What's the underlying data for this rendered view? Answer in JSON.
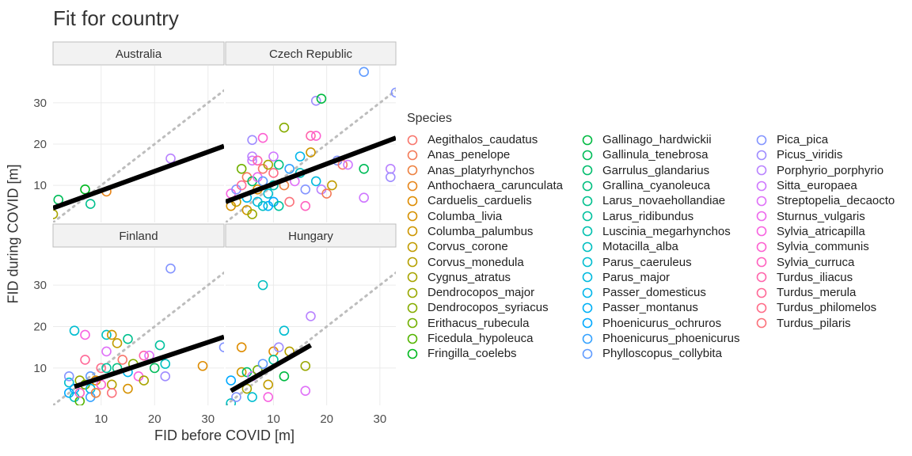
{
  "title": "Fit for country",
  "chart_data": {
    "type": "scatter",
    "title": "Fit for country",
    "xlabel": "FID before COVID [m]",
    "ylabel": "FID during COVID [m]",
    "xlim": [
      1,
      33
    ],
    "ylim": [
      1,
      39
    ],
    "x_ticks": [
      10,
      20,
      30
    ],
    "y_ticks": [
      10,
      20,
      30
    ],
    "legend_title": "Species",
    "legend_position": "right",
    "species": [
      {
        "name": "Aegithalos_caudatus",
        "color": "#F8766D"
      },
      {
        "name": "Anas_penelope",
        "color": "#F37B59"
      },
      {
        "name": "Anas_platyrhynchos",
        "color": "#ED8141"
      },
      {
        "name": "Anthochaera_carunculata",
        "color": "#E7861B"
      },
      {
        "name": "Carduelis_carduelis",
        "color": "#DE8C00"
      },
      {
        "name": "Columba_livia",
        "color": "#D69100"
      },
      {
        "name": "Columba_palumbus",
        "color": "#CD9600"
      },
      {
        "name": "Corvus_corone",
        "color": "#C19C00"
      },
      {
        "name": "Corvus_monedula",
        "color": "#B5A000"
      },
      {
        "name": "Cygnus_atratus",
        "color": "#A8A400"
      },
      {
        "name": "Dendrocopos_major",
        "color": "#99A800"
      },
      {
        "name": "Dendrocopos_syriacus",
        "color": "#86AC00"
      },
      {
        "name": "Erithacus_rubecula",
        "color": "#72B000"
      },
      {
        "name": "Ficedula_hypoleuca",
        "color": "#53B400"
      },
      {
        "name": "Fringilla_coelebs",
        "color": "#00B81F"
      },
      {
        "name": "Gallinago_hardwickii",
        "color": "#00BA42"
      },
      {
        "name": "Gallinula_tenebrosa",
        "color": "#00BC59"
      },
      {
        "name": "Garrulus_glandarius",
        "color": "#00BD6D"
      },
      {
        "name": "Grallina_cyanoleuca",
        "color": "#00BF7F"
      },
      {
        "name": "Larus_novaehollandiae",
        "color": "#00C08E"
      },
      {
        "name": "Larus_ridibundus",
        "color": "#00C19E"
      },
      {
        "name": "Luscinia_megarhynchos",
        "color": "#00C0AF"
      },
      {
        "name": "Motacilla_alba",
        "color": "#00BFC0"
      },
      {
        "name": "Parus_caeruleus",
        "color": "#00BDD0"
      },
      {
        "name": "Parus_major",
        "color": "#00BADE"
      },
      {
        "name": "Passer_domesticus",
        "color": "#00B6EB"
      },
      {
        "name": "Passer_montanus",
        "color": "#00B0F6"
      },
      {
        "name": "Phoenicurus_ochruros",
        "color": "#00A9FF"
      },
      {
        "name": "Phoenicurus_phoenicurus",
        "color": "#35A2FF"
      },
      {
        "name": "Phylloscopus_collybita",
        "color": "#619CFF"
      },
      {
        "name": "Pica_pica",
        "color": "#8494FF"
      },
      {
        "name": "Picus_viridis",
        "color": "#9F8CFF"
      },
      {
        "name": "Porphyrio_porphyrio",
        "color": "#B983FF"
      },
      {
        "name": "Sitta_europaea",
        "color": "#CF78FF"
      },
      {
        "name": "Streptopelia_decaocto",
        "color": "#DF70F8"
      },
      {
        "name": "Sturnus_vulgaris",
        "color": "#ED68ED"
      },
      {
        "name": "Sylvia_atricapilla",
        "color": "#F763E0"
      },
      {
        "name": "Sylvia_communis",
        "color": "#FD61D1"
      },
      {
        "name": "Sylvia_curruca",
        "color": "#FF62BF"
      },
      {
        "name": "Turdus_iliacus",
        "color": "#FF65AC"
      },
      {
        "name": "Turdus_merula",
        "color": "#FF6A98"
      },
      {
        "name": "Turdus_philomelos",
        "color": "#FF6C88"
      },
      {
        "name": "Turdus_pilaris",
        "color": "#FB727B"
      }
    ],
    "panels": [
      {
        "name": "Australia",
        "fit": [
          [
            1,
            4.5
          ],
          [
            33,
            19.5
          ]
        ],
        "points": [
          [
            1,
            3,
            "Cygnus_atratus"
          ],
          [
            2,
            6.5,
            "Gallinula_tenebrosa"
          ],
          [
            7,
            9,
            "Fringilla_coelebs"
          ],
          [
            8,
            5.5,
            "Larus_novaehollandiae"
          ],
          [
            11,
            8.5,
            "Anthochaera_carunculata"
          ],
          [
            23,
            16.5,
            "Porphyrio_porphyrio"
          ]
        ]
      },
      {
        "name": "Czech Republic",
        "fit": [
          [
            1,
            6
          ],
          [
            33,
            21.5
          ]
        ],
        "points": [
          [
            2,
            5,
            "Columba_livia"
          ],
          [
            2,
            8,
            "Sylvia_atricapilla"
          ],
          [
            3,
            9,
            "Pica_pica"
          ],
          [
            3,
            6,
            "Corvus_corone"
          ],
          [
            4,
            14,
            "Erithacus_rubecula"
          ],
          [
            4,
            10,
            "Turdus_merula"
          ],
          [
            5,
            12,
            "Anas_penelope"
          ],
          [
            5,
            7,
            "Passer_domesticus"
          ],
          [
            5,
            4,
            "Columba_palumbus"
          ],
          [
            6,
            16,
            "Sitta_europaea"
          ],
          [
            6,
            11,
            "Garrulus_glandarius"
          ],
          [
            6,
            21,
            "Picus_viridis"
          ],
          [
            6,
            17,
            "Porphyrio_porphyrio"
          ],
          [
            6,
            3,
            "Dendrocopos_major"
          ],
          [
            7,
            16,
            "Turdus_iliacus"
          ],
          [
            7,
            12,
            "Sturnus_vulgaris"
          ],
          [
            7,
            9,
            "Carduelis_carduelis"
          ],
          [
            7,
            6,
            "Parus_major"
          ],
          [
            8,
            21.5,
            "Sylvia_communis"
          ],
          [
            8,
            14,
            "Aegithalos_caudatus"
          ],
          [
            8,
            11,
            "Phylloscopus_collybita"
          ],
          [
            8,
            5,
            "Motacilla_alba"
          ],
          [
            9,
            15,
            "Cygnus_atratus"
          ],
          [
            9,
            8,
            "Parus_caeruleus"
          ],
          [
            9,
            5,
            "Passer_montanus"
          ],
          [
            10,
            13,
            "Turdus_philomelos"
          ],
          [
            10,
            17,
            "Sitta_europaea"
          ],
          [
            10,
            6,
            "Phoenicurus_ochruros"
          ],
          [
            10,
            10,
            "Luscinia_megarhynchos"
          ],
          [
            11,
            5,
            "Larus_ridibundus"
          ],
          [
            11,
            15,
            "Grallina_cyanoleuca"
          ],
          [
            12,
            24,
            "Dendrocopos_syriacus"
          ],
          [
            12,
            10,
            "Anas_platyrhynchos"
          ],
          [
            13,
            6,
            "Turdus_pilaris"
          ],
          [
            13,
            14,
            "Phoenicurus_phoenicurus"
          ],
          [
            14,
            11,
            "Streptopelia_decaocto"
          ],
          [
            15,
            13,
            "Motacilla_alba"
          ],
          [
            15,
            17,
            "Passer_domesticus"
          ],
          [
            16,
            5,
            "Sylvia_curruca"
          ],
          [
            16,
            9,
            "Pica_pica"
          ],
          [
            17,
            22,
            "Turdus_iliacus"
          ],
          [
            17,
            18,
            "Columba_palumbus"
          ],
          [
            18,
            11,
            "Parus_major"
          ],
          [
            18,
            30.5,
            "Picus_viridis"
          ],
          [
            18,
            22,
            "Sylvia_communis"
          ],
          [
            19,
            9,
            "Porphyrio_porphyrio"
          ],
          [
            19,
            31,
            "Gallinago_hardwickii"
          ],
          [
            20,
            8,
            "Anas_penelope"
          ],
          [
            21,
            10,
            "Corvus_corone"
          ],
          [
            22,
            16,
            "Pica_pica"
          ],
          [
            23,
            15,
            "Aegithalos_caudatus"
          ],
          [
            24,
            15,
            "Sitta_europaea"
          ],
          [
            27,
            14,
            "Gallinula_tenebrosa"
          ],
          [
            27,
            37.5,
            "Phylloscopus_collybita"
          ],
          [
            27,
            7,
            "Sitta_europaea"
          ],
          [
            32,
            14,
            "Porphyrio_porphyrio"
          ],
          [
            32,
            12,
            "Picus_viridis"
          ],
          [
            33,
            32.5,
            "Pica_pica"
          ]
        ]
      },
      {
        "name": "Finland",
        "fit": [
          [
            5,
            5.5
          ],
          [
            33,
            17.5
          ]
        ],
        "points": [
          [
            4,
            6.5,
            "Parus_caeruleus"
          ],
          [
            4,
            4,
            "Phoenicurus_ochruros"
          ],
          [
            4,
            8,
            "Pica_pica"
          ],
          [
            5,
            19,
            "Parus_caeruleus"
          ],
          [
            5,
            3,
            "Motacilla_alba"
          ],
          [
            5,
            5,
            "Passer_montanus"
          ],
          [
            6,
            7,
            "Dendrocopos_major"
          ],
          [
            6,
            2,
            "Ficedula_hypoleuca"
          ],
          [
            6,
            4,
            "Sylvia_curruca"
          ],
          [
            7,
            12,
            "Turdus_merula"
          ],
          [
            7,
            18,
            "Sylvia_atricapilla"
          ],
          [
            7,
            6,
            "Erithacus_rubecula"
          ],
          [
            8,
            5,
            "Parus_major"
          ],
          [
            8,
            8,
            "Phylloscopus_collybita"
          ],
          [
            8,
            3,
            "Phoenicurus_phoenicurus"
          ],
          [
            9,
            4,
            "Anas_platyrhynchos"
          ],
          [
            9,
            7,
            "Carduelis_carduelis"
          ],
          [
            10,
            10,
            "Turdus_philomelos"
          ],
          [
            10,
            6,
            "Sylvia_communis"
          ],
          [
            11,
            14,
            "Streptopelia_decaocto"
          ],
          [
            11,
            10,
            "Larus_ridibundus"
          ],
          [
            11,
            18,
            "Motacilla_alba"
          ],
          [
            12,
            6,
            "Corvus_monedula"
          ],
          [
            12,
            4,
            "Turdus_pilaris"
          ],
          [
            12,
            18,
            "Columba_palumbus"
          ],
          [
            13,
            16,
            "Corvus_corone"
          ],
          [
            13,
            10,
            "Grallina_cyanoleuca"
          ],
          [
            14,
            12,
            "Aegithalos_caudatus"
          ],
          [
            15,
            9,
            "Passer_domesticus"
          ],
          [
            15,
            17,
            "Larus_novaehollandiae"
          ],
          [
            15,
            5,
            "Columba_livia"
          ],
          [
            16,
            11,
            "Dendrocopos_syriacus"
          ],
          [
            17,
            8,
            "Sylvia_atricapilla"
          ],
          [
            18,
            7,
            "Cygnus_atratus"
          ],
          [
            18,
            13,
            "Turdus_iliacus"
          ],
          [
            19,
            13,
            "Streptopelia_decaocto"
          ],
          [
            20,
            10,
            "Gallinula_tenebrosa"
          ],
          [
            21,
            15.5,
            "Larus_ridibundus"
          ],
          [
            22,
            11,
            "Motacilla_alba"
          ],
          [
            22,
            8,
            "Picus_viridis"
          ],
          [
            23,
            34,
            "Pica_pica"
          ],
          [
            29,
            10.5,
            "Carduelis_carduelis"
          ],
          [
            33,
            15,
            "Pica_pica"
          ]
        ]
      },
      {
        "name": "Hungary",
        "fit": [
          [
            2,
            4.5
          ],
          [
            17,
            15.5
          ]
        ],
        "points": [
          [
            2,
            7,
            "Phoenicurus_ochruros"
          ],
          [
            2,
            1.5,
            "Motacilla_alba"
          ],
          [
            3,
            3,
            "Pica_pica"
          ],
          [
            4,
            15,
            "Carduelis_carduelis"
          ],
          [
            4,
            9,
            "Columba_palumbus"
          ],
          [
            5,
            5,
            "Cygnus_atratus"
          ],
          [
            5,
            9,
            "Garrulus_glandarius"
          ],
          [
            6,
            3,
            "Parus_caeruleus"
          ],
          [
            6,
            8,
            "Sitta_europaea"
          ],
          [
            7,
            9.5,
            "Erithacus_rubecula"
          ],
          [
            8,
            30,
            "Motacilla_alba"
          ],
          [
            8,
            11,
            "Phylloscopus_collybita"
          ],
          [
            9,
            6,
            "Corvus_corone"
          ],
          [
            9,
            3,
            "Sylvia_atricapilla"
          ],
          [
            10,
            14,
            "Carduelis_carduelis"
          ],
          [
            10,
            12,
            "Larus_ridibundus"
          ],
          [
            11,
            15,
            "Picus_viridis"
          ],
          [
            12,
            19,
            "Parus_caeruleus"
          ],
          [
            12,
            8,
            "Gallinago_hardwickii"
          ],
          [
            13,
            14,
            "Corvus_monedula"
          ],
          [
            16,
            4.5,
            "Streptopelia_decaocto"
          ],
          [
            16,
            10.5,
            "Dendrocopos_major"
          ],
          [
            17,
            22.5,
            "Porphyrio_porphyrio"
          ]
        ]
      }
    ]
  }
}
